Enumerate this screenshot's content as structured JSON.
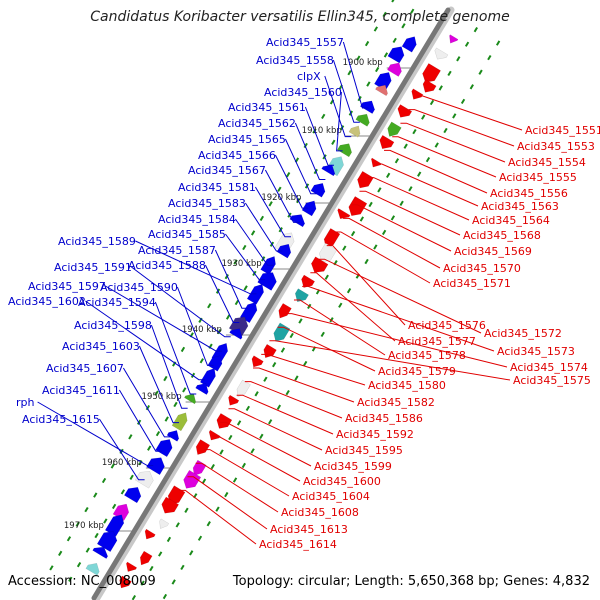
{
  "title": "Candidatus Koribacter versatilis Ellin345, complete genome",
  "accession": "Accession: NC_008009",
  "summary": "Topology: circular; Length: 5,650,368 bp; Genes: 4,832",
  "colors": {
    "left_labels": "#0000cc",
    "right_labels": "#e00000",
    "backbone": "#777777",
    "tick": "#1a8a1a"
  },
  "kbp_markers": [
    "1900 kbp",
    "1910 kbp",
    "1920 kbp",
    "1930 kbp",
    "1940 kbp",
    "1950 kbp",
    "1960 kbp",
    "1970 kbp"
  ],
  "left_genes": [
    "Acid345_1557",
    "Acid345_1558",
    "clpX",
    "Acid345_1560",
    "Acid345_1561",
    "Acid345_1562",
    "Acid345_1565",
    "Acid345_1566",
    "Acid345_1567",
    "Acid345_1581",
    "Acid345_1583",
    "Acid345_1584",
    "Acid345_1585",
    "Acid345_1589",
    "Acid345_1587",
    "Acid345_1588",
    "Acid345_1591",
    "Acid345_1597",
    "Acid345_1590",
    "Acid345_1602",
    "Acid345_1594",
    "Acid345_1598",
    "Acid345_1603",
    "Acid345_1607",
    "Acid345_1611",
    "rph",
    "Acid345_1615"
  ],
  "right_genes": [
    "Acid345_1551",
    "Acid345_1553",
    "Acid345_1554",
    "Acid345_1555",
    "Acid345_1556",
    "Acid345_1563",
    "Acid345_1564",
    "Acid345_1568",
    "Acid345_1569",
    "Acid345_1570",
    "Acid345_1571",
    "Acid345_1576",
    "Acid345_1572",
    "Acid345_1577",
    "Acid345_1573",
    "Acid345_1578",
    "Acid345_1574",
    "Acid345_1579",
    "Acid345_1575",
    "Acid345_1580",
    "Acid345_1582",
    "Acid345_1586",
    "Acid345_1592",
    "Acid345_1595",
    "Acid345_1599",
    "Acid345_1600",
    "Acid345_1604",
    "Acid345_1608",
    "Acid345_1613",
    "Acid345_1614"
  ]
}
